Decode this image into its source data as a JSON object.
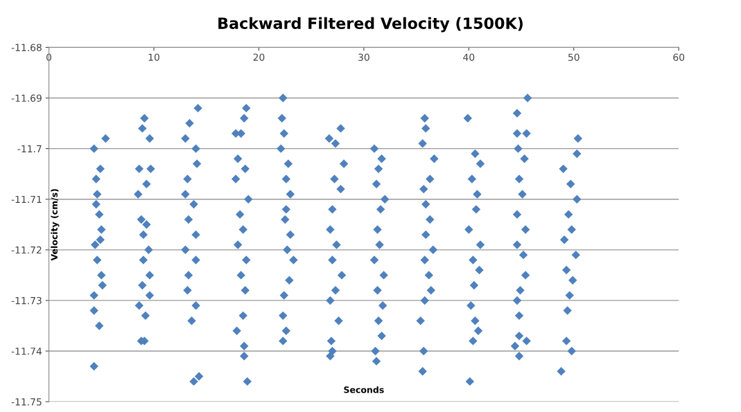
{
  "chart_data": {
    "type": "scatter",
    "title": "Backward Filtered Velocity (1500K)",
    "xlabel": "Seconds",
    "ylabel": "Velocity (cm/s)",
    "xlim": [
      0,
      60
    ],
    "xticks": [
      0,
      10,
      20,
      30,
      40,
      50,
      60
    ],
    "ylim": [
      -11.75,
      -11.68
    ],
    "yticks": [
      -11.68,
      -11.69,
      -11.7,
      -11.71,
      -11.72,
      -11.73,
      -11.74,
      -11.75
    ],
    "grid": "y",
    "marker": "diamond",
    "series": [
      {
        "color": "#4f81bd",
        "x": [
          5.4,
          4.3,
          4.9,
          4.5,
          4.6,
          4.8,
          5.0,
          4.4,
          4.6,
          5.0,
          5.1,
          4.3,
          4.3,
          4.8,
          4.3,
          4.5,
          4.9,
          9.1,
          8.9,
          9.6,
          8.6,
          9.7,
          9.3,
          8.5,
          8.8,
          9.3,
          9.0,
          9.5,
          9.0,
          9.6,
          8.9,
          9.6,
          8.6,
          9.2,
          8.8,
          9.1,
          14.2,
          13.4,
          13.0,
          14.0,
          14.1,
          13.2,
          13.0,
          13.8,
          13.3,
          14.0,
          13.0,
          14.0,
          13.3,
          13.2,
          14.0,
          13.6,
          13.8,
          14.3,
          18.8,
          18.6,
          18.3,
          17.8,
          18.0,
          18.7,
          17.8,
          19.0,
          18.2,
          18.5,
          18.0,
          18.8,
          18.3,
          18.7,
          18.5,
          17.9,
          18.6,
          18.6,
          18.9,
          22.3,
          22.2,
          22.4,
          22.1,
          22.8,
          22.6,
          23.0,
          22.6,
          22.5,
          23.0,
          22.7,
          23.3,
          22.9,
          22.4,
          22.3,
          22.6,
          22.3,
          27.8,
          26.7,
          27.3,
          28.1,
          27.2,
          27.8,
          27.0,
          26.8,
          27.4,
          27.0,
          27.9,
          27.3,
          26.8,
          27.6,
          26.9,
          26.8,
          27.0,
          31.0,
          31.7,
          31.4,
          31.2,
          32.0,
          31.6,
          31.3,
          31.5,
          31.0,
          31.9,
          31.3,
          31.8,
          31.4,
          31.7,
          31.1,
          31.2,
          35.8,
          35.9,
          35.6,
          36.7,
          36.3,
          35.7,
          35.9,
          36.3,
          35.9,
          36.6,
          35.8,
          36.2,
          36.4,
          35.8,
          35.4,
          35.7,
          35.6,
          39.9,
          40.6,
          41.1,
          40.3,
          40.8,
          40.7,
          40.0,
          41.1,
          40.4,
          41.0,
          40.5,
          40.2,
          40.6,
          40.4,
          40.9,
          40.1,
          45.6,
          44.6,
          44.6,
          45.5,
          44.7,
          45.3,
          44.8,
          45.1,
          44.6,
          45.4,
          44.6,
          45.2,
          45.4,
          44.9,
          44.6,
          44.8,
          44.8,
          45.5,
          44.4,
          44.8,
          50.4,
          50.3,
          49.0,
          49.7,
          50.3,
          49.5,
          49.8,
          49.1,
          50.2,
          49.3,
          49.9,
          49.6,
          49.4,
          49.3,
          49.8,
          48.8
        ],
        "values": [
          -11.698,
          -11.7,
          -11.704,
          -11.706,
          -11.709,
          -11.713,
          -11.716,
          -11.719,
          -11.722,
          -11.725,
          -11.727,
          -11.729,
          -11.732,
          -11.735,
          -11.743,
          -11.711,
          -11.718,
          -11.694,
          -11.696,
          -11.698,
          -11.704,
          -11.704,
          -11.707,
          -11.709,
          -11.714,
          -11.715,
          -11.717,
          -11.72,
          -11.722,
          -11.725,
          -11.727,
          -11.729,
          -11.731,
          -11.733,
          -11.738,
          -11.738,
          -11.692,
          -11.695,
          -11.698,
          -11.7,
          -11.703,
          -11.706,
          -11.709,
          -11.711,
          -11.714,
          -11.717,
          -11.72,
          -11.722,
          -11.725,
          -11.728,
          -11.731,
          -11.734,
          -11.746,
          -11.745,
          -11.692,
          -11.694,
          -11.697,
          -11.697,
          -11.702,
          -11.704,
          -11.706,
          -11.71,
          -11.713,
          -11.716,
          -11.719,
          -11.722,
          -11.725,
          -11.728,
          -11.733,
          -11.736,
          -11.739,
          -11.741,
          -11.746,
          -11.69,
          -11.694,
          -11.697,
          -11.7,
          -11.703,
          -11.706,
          -11.709,
          -11.712,
          -11.714,
          -11.717,
          -11.72,
          -11.722,
          -11.726,
          -11.729,
          -11.733,
          -11.736,
          -11.738,
          -11.696,
          -11.698,
          -11.699,
          -11.703,
          -11.706,
          -11.708,
          -11.712,
          -11.716,
          -11.719,
          -11.722,
          -11.725,
          -11.728,
          -11.73,
          -11.734,
          -11.738,
          -11.741,
          -11.74,
          -11.7,
          -11.702,
          -11.704,
          -11.707,
          -11.71,
          -11.712,
          -11.716,
          -11.719,
          -11.722,
          -11.725,
          -11.728,
          -11.731,
          -11.734,
          -11.737,
          -11.74,
          -11.742,
          -11.694,
          -11.696,
          -11.699,
          -11.702,
          -11.706,
          -11.708,
          -11.711,
          -11.714,
          -11.717,
          -11.72,
          -11.722,
          -11.725,
          -11.728,
          -11.73,
          -11.734,
          -11.74,
          -11.744,
          -11.694,
          -11.701,
          -11.703,
          -11.706,
          -11.709,
          -11.712,
          -11.716,
          -11.719,
          -11.722,
          -11.724,
          -11.727,
          -11.731,
          -11.734,
          -11.738,
          -11.736,
          -11.746,
          -11.69,
          -11.693,
          -11.697,
          -11.697,
          -11.7,
          -11.702,
          -11.706,
          -11.709,
          -11.713,
          -11.716,
          -11.719,
          -11.721,
          -11.725,
          -11.728,
          -11.73,
          -11.733,
          -11.737,
          -11.738,
          -11.739,
          -11.741,
          -11.698,
          -11.701,
          -11.704,
          -11.707,
          -11.71,
          -11.713,
          -11.716,
          -11.718,
          -11.721,
          -11.724,
          -11.726,
          -11.729,
          -11.732,
          -11.738,
          -11.74,
          -11.744
        ]
      }
    ]
  }
}
